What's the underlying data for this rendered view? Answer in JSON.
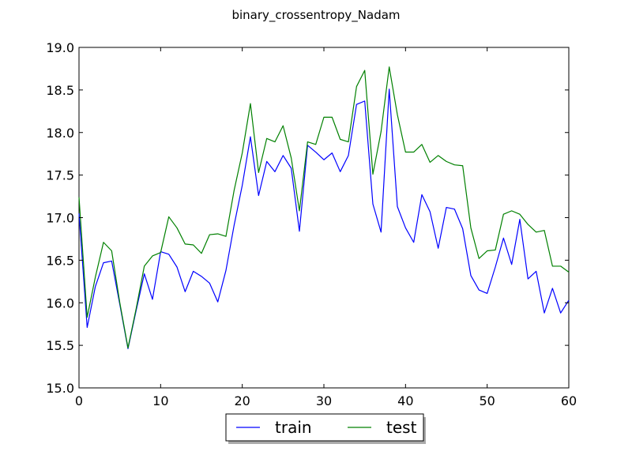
{
  "chart_data": {
    "type": "line",
    "title": "binary_crossentropy_Nadam",
    "xlabel": "",
    "ylabel": "",
    "xlim": [
      0,
      60
    ],
    "ylim": [
      15.0,
      19.0
    ],
    "x_ticks": [
      "0",
      "10",
      "20",
      "30",
      "40",
      "50",
      "60"
    ],
    "y_ticks": [
      "15.0",
      "15.5",
      "16.0",
      "16.5",
      "17.0",
      "17.5",
      "18.0",
      "18.5",
      "19.0"
    ],
    "grid": false,
    "legend_position": "bottom-center",
    "x": [
      0,
      1,
      2,
      3,
      4,
      5,
      6,
      7,
      8,
      9,
      10,
      11,
      12,
      13,
      14,
      15,
      16,
      17,
      18,
      19,
      20,
      21,
      22,
      23,
      24,
      25,
      26,
      27,
      28,
      29,
      30,
      31,
      32,
      33,
      34,
      35,
      36,
      37,
      38,
      39,
      40,
      41,
      42,
      43,
      44,
      45,
      46,
      47,
      48,
      49,
      50,
      51,
      52,
      53,
      54,
      55,
      56,
      57,
      58,
      59,
      60
    ],
    "series": [
      {
        "name": "train",
        "color": "#0000ff",
        "values": [
          17.05,
          15.71,
          16.19,
          16.47,
          16.49,
          15.98,
          15.46,
          15.91,
          16.34,
          16.04,
          16.6,
          16.57,
          16.42,
          16.13,
          16.37,
          16.31,
          16.23,
          16.01,
          16.38,
          16.91,
          17.38,
          17.95,
          17.26,
          17.66,
          17.54,
          17.73,
          17.58,
          16.84,
          17.85,
          17.77,
          17.68,
          17.76,
          17.54,
          17.73,
          18.33,
          18.37,
          17.16,
          16.83,
          18.51,
          17.13,
          16.88,
          16.71,
          17.27,
          17.07,
          16.64,
          17.12,
          17.1,
          16.87,
          16.32,
          16.15,
          16.11,
          16.42,
          16.76,
          16.45,
          16.98,
          16.28,
          16.37,
          15.88,
          16.17,
          15.88,
          16.03
        ]
      },
      {
        "name": "test",
        "color": "#008000",
        "values": [
          17.24,
          15.83,
          16.3,
          16.71,
          16.61,
          16.0,
          15.47,
          15.93,
          16.43,
          16.55,
          16.59,
          17.01,
          16.88,
          16.69,
          16.68,
          16.58,
          16.8,
          16.81,
          16.78,
          17.32,
          17.76,
          18.34,
          17.53,
          17.93,
          17.89,
          18.08,
          17.7,
          17.08,
          17.89,
          17.86,
          18.18,
          18.18,
          17.92,
          17.89,
          18.54,
          18.73,
          17.51,
          18.01,
          18.77,
          18.21,
          17.77,
          17.77,
          17.86,
          17.65,
          17.73,
          17.66,
          17.62,
          17.61,
          16.88,
          16.52,
          16.61,
          16.62,
          17.04,
          17.08,
          17.04,
          16.92,
          16.83,
          16.85,
          16.43,
          16.43,
          16.36
        ]
      }
    ]
  }
}
